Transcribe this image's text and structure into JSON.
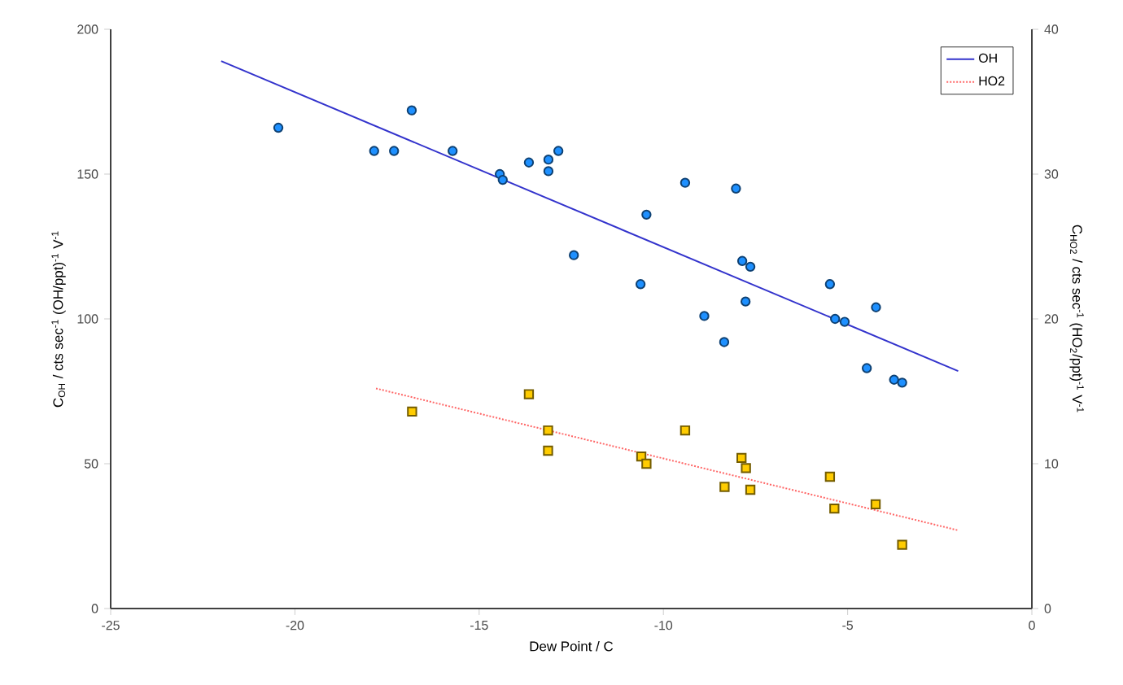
{
  "chart_data": {
    "type": "scatter",
    "xlabel": "Dew Point / C",
    "ylabel": "C$_{OH}$ / cts sec$^{-1}$ (OH/ppt)$^{-1}$ V$^{-1}$",
    "y2label": "C$_{HO2}$ / cts sec$^{-1}$ (HO$_{2}$/ppt)$^{-1}$ V$^{-1}$",
    "xlim": [
      -25,
      0
    ],
    "xticks": [
      -25,
      -20,
      -15,
      -10,
      -5,
      0
    ],
    "ylim": [
      0,
      200
    ],
    "yticks": [
      0,
      50,
      100,
      150,
      200
    ],
    "y2lim": [
      0,
      40
    ],
    "y2ticks": [
      0,
      10,
      20,
      30,
      40
    ],
    "legend": "top right",
    "grid": false,
    "series": [
      {
        "marker": "circle",
        "color": "#1e90ff",
        "x": [
          -20.45,
          -17.85,
          -17.31,
          -16.83,
          -15.72,
          -14.44,
          -14.36,
          -13.65,
          -13.12,
          -13.12,
          -12.85,
          -12.43,
          -9.41,
          -8.03,
          -10.46,
          -10.62,
          -7.86,
          -7.64,
          -8.89,
          -7.77,
          -8.35,
          -5.48,
          -5.34,
          -5.08,
          -4.23,
          -4.48,
          -3.74,
          -3.52
        ],
        "values": [
          166,
          158,
          158,
          172,
          158,
          150,
          148,
          154,
          155,
          151,
          158,
          122,
          147,
          145,
          136,
          112,
          120,
          118,
          101,
          106,
          92,
          112,
          100,
          99,
          104,
          83,
          79,
          78
        ]
      },
      {
        "marker": "square",
        "axis": "y2",
        "color": "#ffcc00",
        "x": [
          -16.82,
          -13.65,
          -13.13,
          -13.13,
          -10.6,
          -10.46,
          -9.41,
          -8.34,
          -7.88,
          -7.76,
          -7.64,
          -5.48,
          -5.36,
          -4.24,
          -3.52
        ],
        "values": [
          13.6,
          14.8,
          12.3,
          10.9,
          10.5,
          10.0,
          12.3,
          8.4,
          10.4,
          9.7,
          8.2,
          9.1,
          6.9,
          7.2,
          4.4
        ]
      },
      {
        "type": "line",
        "name": "OH",
        "marker": "none",
        "line_style": "solid",
        "color": "#3333cc",
        "x": [
          -22,
          -2
        ],
        "values": [
          189,
          82
        ]
      },
      {
        "type": "line",
        "name": "HO2",
        "marker": "none",
        "line_style": "dotted",
        "axis": "y2",
        "color": "#ff6666",
        "x": [
          -17.8,
          -2
        ],
        "values": [
          15.2,
          5.4
        ]
      }
    ]
  }
}
